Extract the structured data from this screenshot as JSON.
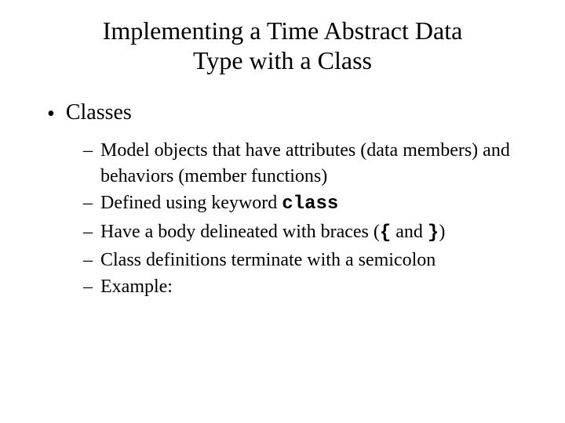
{
  "title_line1": "Implementing a Time Abstract Data",
  "title_line2": "Type with a Class",
  "bullet_main": "Classes",
  "sub_items": [
    {
      "pre": "Model objects that have attributes (data members) and behaviors (member functions)",
      "mono": "",
      "post": ""
    },
    {
      "pre": "Defined using keyword ",
      "mono": "class",
      "post": ""
    },
    {
      "pre": "Have a body delineated with braces (",
      "mono": "{",
      "mid": " and ",
      "mono2": "}",
      "post": ")"
    },
    {
      "pre": "Class definitions terminate with a semicolon",
      "mono": "",
      "post": ""
    },
    {
      "pre": "Example:",
      "mono": "",
      "post": ""
    }
  ],
  "colors": {
    "background": "#ffffff",
    "text": "#000000"
  },
  "typography": {
    "title_fontsize": 32,
    "bullet_fontsize": 28,
    "sub_fontsize": 24,
    "font_family": "Times New Roman",
    "mono_family": "Courier New"
  }
}
